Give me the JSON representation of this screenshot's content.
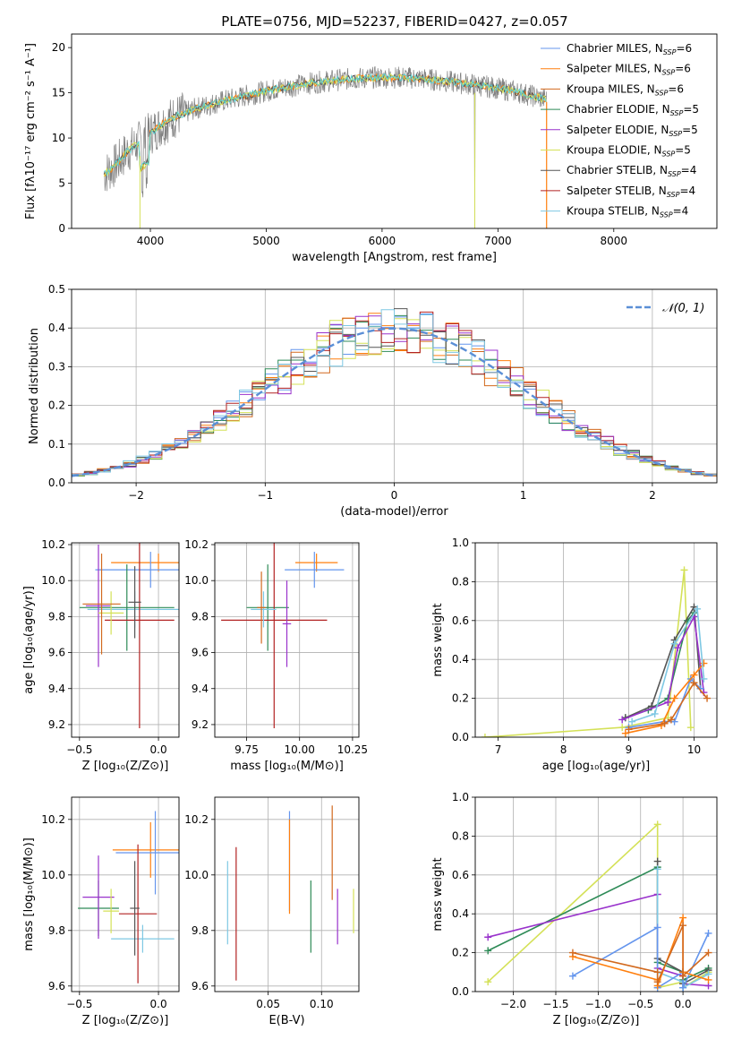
{
  "figure_title": "PLATE=0756, MJD=52237, FIBERID=0427, z=0.057",
  "colors": {
    "CM": "#6495ed",
    "SM": "#ff7f0e",
    "KM": "#d2691e",
    "CE": "#2e8b57",
    "SE": "#9932cc",
    "KE": "#d4e157",
    "CS": "#555555",
    "SS": "#b22222",
    "KS": "#7ec8e3",
    "gauss": "#5b8fd6",
    "data": "#808080",
    "cyan": "#5ed1d1"
  },
  "chart_data": [
    {
      "type": "line",
      "panel": "spectrum",
      "xlabel": "wavelength [Angstrom, rest frame]",
      "ylabel": "Flux [fλ10⁻¹⁷ erg cm⁻² s⁻¹ A⁻¹]",
      "xlim": [
        3320,
        8890
      ],
      "ylim": [
        0,
        21.5
      ],
      "xticks": [
        "4000",
        "5000",
        "6000",
        "7000",
        "8000"
      ],
      "yticks": [
        "0",
        "5",
        "10",
        "15",
        "20"
      ],
      "legend_position": "upper-right",
      "legend": [
        {
          "label": "Chabrier MILES, N",
          "sub": "SSP",
          "suffix": "=6",
          "key": "CM"
        },
        {
          "label": "Salpeter MILES, N",
          "sub": "SSP",
          "suffix": "=6",
          "key": "SM"
        },
        {
          "label": "Kroupa MILES, N",
          "sub": "SSP",
          "suffix": "=6",
          "key": "KM"
        },
        {
          "label": "Chabrier ELODIE, N",
          "sub": "SSP",
          "suffix": "=5",
          "key": "CE"
        },
        {
          "label": "Salpeter ELODIE, N",
          "sub": "SSP",
          "suffix": "=5",
          "key": "SE"
        },
        {
          "label": "Kroupa ELODIE, N",
          "sub": "SSP",
          "suffix": "=5",
          "key": "KE"
        },
        {
          "label": "Chabrier STELIB, N",
          "sub": "SSP",
          "suffix": "=4",
          "key": "CS"
        },
        {
          "label": "Salpeter STELIB, N",
          "sub": "SSP",
          "suffix": "=4",
          "key": "SS"
        },
        {
          "label": "Kroupa STELIB, N",
          "sub": "SSP",
          "suffix": "=4",
          "key": "KS"
        }
      ],
      "continuum": {
        "x": [
          3600,
          3700,
          3800,
          3900,
          4000,
          4100,
          4200,
          4400,
          4600,
          4800,
          5000,
          5200,
          5400,
          5600,
          5800,
          6000,
          6200,
          6400,
          6600,
          6800,
          7000,
          7200,
          7400
        ],
        "y": [
          6,
          7,
          8.5,
          9.5,
          10.5,
          11.5,
          12.3,
          13.3,
          14,
          14.6,
          15.2,
          15.7,
          16.1,
          16.4,
          16.6,
          16.7,
          16.7,
          16.5,
          16.2,
          15.9,
          15.5,
          15,
          14.3
        ]
      }
    },
    {
      "type": "bar",
      "panel": "residuals",
      "xlabel": "(data-model)/error",
      "ylabel": "Normed distribution",
      "xlim": [
        -2.5,
        2.5
      ],
      "ylim": [
        0,
        0.5
      ],
      "xticks": [
        "−2",
        "−1",
        "0",
        "1",
        "2"
      ],
      "yticks": [
        "0.0",
        "0.1",
        "0.2",
        "0.3",
        "0.4",
        "0.5"
      ],
      "legend_position": "upper-right",
      "legend": [
        {
          "label": "𝒩(0, 1)",
          "key": "gauss"
        }
      ],
      "bin_width": 0.1
    },
    {
      "type": "scatter",
      "panel": "Z-age",
      "xlabel": "Z [log₁₀(Z/Z⊙)]",
      "ylabel": "age  [log₁₀(age/yr)]",
      "xlim": [
        -0.55,
        0.13
      ],
      "ylim": [
        9.13,
        10.21
      ],
      "xticks": [
        "−0.5",
        "0.0"
      ],
      "yticks": [
        "9.2",
        "9.4",
        "9.6",
        "9.8",
        "10.0",
        "10.2"
      ],
      "points": [
        {
          "key": "SM",
          "x": 0.0,
          "xe": 0.3,
          "y": 10.1,
          "ye": 0.05
        },
        {
          "key": "CM",
          "x": -0.05,
          "xe": 0.35,
          "y": 10.06,
          "ye": 0.1
        },
        {
          "key": "KS",
          "x": -0.15,
          "xe": 0.3,
          "y": 9.84,
          "ye": 0.1
        },
        {
          "key": "CE",
          "x": -0.2,
          "xe": 0.3,
          "y": 9.85,
          "ye": 0.24
        },
        {
          "key": "SS",
          "x": -0.12,
          "xe": 0.22,
          "y": 9.78,
          "ye": 0.6
        },
        {
          "key": "SE",
          "x": -0.38,
          "xe": 0.08,
          "y": 9.86,
          "ye": 0.34
        },
        {
          "key": "KE",
          "x": -0.3,
          "xe": 0.08,
          "y": 9.82,
          "ye": 0.12
        },
        {
          "key": "KM",
          "x": -0.36,
          "xe": 0.12,
          "y": 9.87,
          "ye": 0.28
        },
        {
          "key": "CS",
          "x": -0.15,
          "xe": 0.04,
          "y": 9.88,
          "ye": 0.2
        }
      ]
    },
    {
      "type": "scatter",
      "panel": "mass-age",
      "xlabel": "mass [log₁₀(M/M⊙)]",
      "ylabel": "",
      "xlim": [
        9.6,
        10.28
      ],
      "ylim": [
        9.13,
        10.21
      ],
      "xticks": [
        "9.75",
        "10.00",
        "10.25"
      ],
      "yticks": [
        "9.2",
        "9.4",
        "9.6",
        "9.8",
        "10.0",
        "10.2"
      ],
      "points": [
        {
          "key": "SM",
          "x": 10.08,
          "xe": 0.1,
          "y": 10.1,
          "ye": 0.05
        },
        {
          "key": "CM",
          "x": 10.07,
          "xe": 0.14,
          "y": 10.06,
          "ye": 0.1
        },
        {
          "key": "CE",
          "x": 9.85,
          "xe": 0.1,
          "y": 9.85,
          "ye": 0.24
        },
        {
          "key": "SS",
          "x": 9.88,
          "xe": 0.25,
          "y": 9.78,
          "ye": 0.6
        },
        {
          "key": "SE",
          "x": 9.94,
          "xe": 0.02,
          "y": 9.76,
          "ye": 0.24
        },
        {
          "key": "KS",
          "x": 9.83,
          "xe": 0.06,
          "y": 9.84,
          "ye": 0.1
        },
        {
          "key": "KM",
          "x": 9.82,
          "xe": 0.02,
          "y": 9.85,
          "ye": 0.2
        }
      ]
    },
    {
      "type": "line",
      "panel": "age-weight",
      "xlabel": "age  [log₁₀(age/yr)]",
      "ylabel": "mass weight",
      "xlim": [
        6.65,
        10.35
      ],
      "ylim": [
        0,
        1.0
      ],
      "xticks": [
        "7",
        "8",
        "9",
        "10"
      ],
      "yticks": [
        "0.0",
        "0.2",
        "0.4",
        "0.6",
        "0.8",
        "1.0"
      ],
      "series": [
        {
          "key": "KE",
          "x": [
            6.8,
            8.9,
            9.6,
            9.85,
            9.95
          ],
          "y": [
            0.0,
            0.05,
            0.1,
            0.86,
            0.05
          ]
        },
        {
          "key": "CE",
          "x": [
            8.95,
            9.3,
            9.6,
            9.9,
            10.0
          ],
          "y": [
            0.1,
            0.14,
            0.2,
            0.6,
            0.64
          ]
        },
        {
          "key": "CS",
          "x": [
            8.95,
            9.35,
            9.7,
            10.0,
            10.1
          ],
          "y": [
            0.1,
            0.16,
            0.5,
            0.67,
            0.25
          ]
        },
        {
          "key": "SE",
          "x": [
            8.9,
            9.6,
            9.75,
            10.0,
            10.15
          ],
          "y": [
            0.09,
            0.18,
            0.46,
            0.62,
            0.23
          ]
        },
        {
          "key": "CM",
          "x": [
            9.0,
            9.55,
            9.7,
            9.95,
            10.1
          ],
          "y": [
            0.05,
            0.08,
            0.08,
            0.3,
            0.25
          ]
        },
        {
          "key": "SM",
          "x": [
            8.95,
            9.5,
            9.7,
            10.0,
            10.15
          ],
          "y": [
            0.02,
            0.06,
            0.2,
            0.32,
            0.38
          ]
        },
        {
          "key": "KM",
          "x": [
            9.0,
            9.55,
            9.65,
            10.0,
            10.2
          ],
          "y": [
            0.04,
            0.07,
            0.09,
            0.28,
            0.2
          ]
        },
        {
          "key": "KS",
          "x": [
            9.05,
            9.4,
            9.7,
            10.05,
            10.15
          ],
          "y": [
            0.08,
            0.12,
            0.48,
            0.66,
            0.3
          ]
        }
      ]
    },
    {
      "type": "scatter",
      "panel": "Z-mass",
      "xlabel": "Z [log₁₀(Z/Z⊙)]",
      "ylabel": "mass [log₁₀(M/M⊙)]",
      "xlim": [
        -0.55,
        0.13
      ],
      "ylim": [
        9.58,
        10.28
      ],
      "xticks": [
        "−0.5",
        "0.0"
      ],
      "yticks": [
        "9.6",
        "9.8",
        "10.0",
        "10.2"
      ],
      "points": [
        {
          "key": "SM",
          "x": -0.05,
          "xe": 0.24,
          "y": 10.09,
          "ye": 0.1
        },
        {
          "key": "CM",
          "x": -0.02,
          "xe": 0.25,
          "y": 10.08,
          "ye": 0.15
        },
        {
          "key": "KS",
          "x": -0.1,
          "xe": 0.2,
          "y": 9.77,
          "ye": 0.05
        },
        {
          "key": "CE",
          "x": -0.38,
          "xe": 0.13,
          "y": 9.88,
          "ye": 0.1
        },
        {
          "key": "SS",
          "x": -0.13,
          "xe": 0.12,
          "y": 9.86,
          "ye": 0.25
        },
        {
          "key": "SE",
          "x": -0.38,
          "xe": 0.1,
          "y": 9.92,
          "ye": 0.15
        },
        {
          "key": "KE",
          "x": -0.3,
          "xe": 0.05,
          "y": 9.87,
          "ye": 0.08
        },
        {
          "key": "CS",
          "x": -0.15,
          "xe": 0.03,
          "y": 9.88,
          "ye": 0.17
        }
      ]
    },
    {
      "type": "scatter",
      "panel": "EBV-mass",
      "xlabel": "E(B-V)",
      "ylabel": "",
      "xlim": [
        0.0,
        0.135
      ],
      "ylim": [
        9.58,
        10.28
      ],
      "xticks": [
        "0.05",
        "0.10"
      ],
      "yticks": [
        "9.6",
        "9.8",
        "10.0",
        "10.2"
      ],
      "points": [
        {
          "key": "KS",
          "x": 0.012,
          "y": 9.9,
          "ye": 0.15
        },
        {
          "key": "SS",
          "x": 0.02,
          "y": 9.86,
          "ye": 0.24
        },
        {
          "key": "CM",
          "x": 0.07,
          "y": 10.05,
          "ye": 0.18
        },
        {
          "key": "SM",
          "x": 0.07,
          "y": 10.03,
          "ye": 0.17
        },
        {
          "key": "CE",
          "x": 0.09,
          "y": 9.85,
          "ye": 0.13
        },
        {
          "key": "KM",
          "x": 0.11,
          "y": 10.08,
          "ye": 0.17
        },
        {
          "key": "SE",
          "x": 0.115,
          "y": 9.85,
          "ye": 0.1
        },
        {
          "key": "KE",
          "x": 0.13,
          "y": 9.87,
          "ye": 0.08
        }
      ]
    },
    {
      "type": "line",
      "panel": "Z-weight",
      "xlabel": "Z [log₁₀(Z/Z⊙)]",
      "ylabel": "mass weight",
      "xlim": [
        -2.45,
        0.4
      ],
      "ylim": [
        0,
        1.0
      ],
      "xticks": [
        "−2.0",
        "−1.5",
        "−1.0",
        "−0.5",
        "0.0"
      ],
      "yticks": [
        "0.0",
        "0.2",
        "0.4",
        "0.6",
        "0.8",
        "1.0"
      ],
      "series": [
        {
          "key": "KE",
          "x": [
            -2.3,
            -0.3,
            -0.3,
            0.0,
            0.0,
            0.3
          ],
          "y": [
            0.05,
            0.86,
            0.02,
            0.05,
            0.02,
            0.1
          ]
        },
        {
          "key": "CE",
          "x": [
            -2.3,
            -0.3,
            -0.3,
            0.0,
            0.0,
            0.3
          ],
          "y": [
            0.21,
            0.64,
            0.15,
            0.1,
            0.06,
            0.12
          ]
        },
        {
          "key": "SE",
          "x": [
            -2.3,
            -0.3,
            -0.3,
            0.0,
            0.0,
            0.3
          ],
          "y": [
            0.28,
            0.5,
            0.12,
            0.08,
            0.04,
            0.03
          ]
        },
        {
          "key": "CS",
          "x": [
            -0.3,
            -0.3,
            0.0,
            0.0,
            0.3
          ],
          "y": [
            0.67,
            0.17,
            0.1,
            0.04,
            0.11
          ]
        },
        {
          "key": "KS",
          "x": [
            -0.3,
            -0.3,
            0.0,
            0.0,
            0.3
          ],
          "y": [
            0.63,
            0.1,
            0.05,
            0.02,
            0.09
          ]
        },
        {
          "key": "CM",
          "x": [
            -1.3,
            -0.3,
            -0.3,
            0.0,
            0.0,
            0.3
          ],
          "y": [
            0.08,
            0.33,
            0.02,
            0.1,
            0.02,
            0.3
          ]
        },
        {
          "key": "SM",
          "x": [
            -1.3,
            -0.3,
            -0.3,
            0.0,
            0.0,
            0.3
          ],
          "y": [
            0.18,
            0.06,
            0.03,
            0.38,
            0.1,
            0.06
          ]
        },
        {
          "key": "KM",
          "x": [
            -1.3,
            -0.3,
            -0.3,
            0.0,
            0.0,
            0.3
          ],
          "y": [
            0.2,
            0.1,
            0.05,
            0.34,
            0.08,
            0.2
          ]
        }
      ]
    }
  ]
}
